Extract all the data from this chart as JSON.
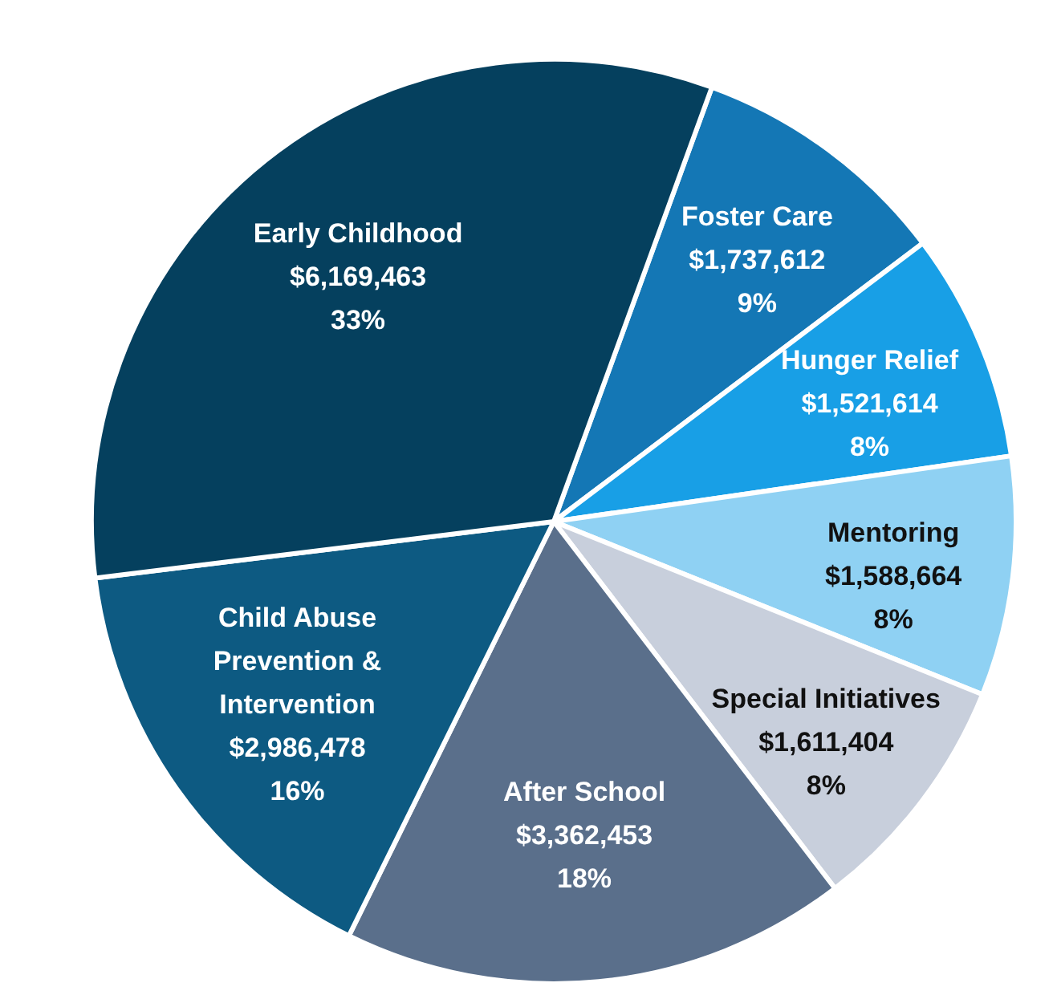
{
  "chart_data": {
    "type": "pie",
    "categories": [
      "Foster Care",
      "Hunger Relief",
      "Mentoring",
      "Special Initiatives",
      "After School",
      "Child Abuse Prevention & Intervention",
      "Early Childhood"
    ],
    "values": [
      1737612,
      1521614,
      1588664,
      1611404,
      3362453,
      2986478,
      6169463
    ],
    "value_labels": [
      "$1,737,612\n9%",
      "$1,521,614\n8%",
      "$1,588,664\n8%",
      "$1,611,404\n8%",
      "$3,362,453\n18%",
      "$2,986,478\n16%",
      "$6,169,463\n33%"
    ],
    "colors": [
      "#1477b5",
      "#189fe6",
      "#8fd1f3",
      "#c8cfdc",
      "#5a6f8b",
      "#0d5a82",
      "#05405e"
    ],
    "legend": false
  }
}
